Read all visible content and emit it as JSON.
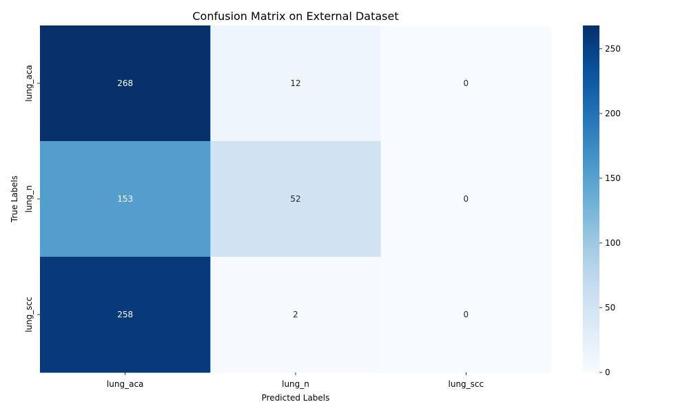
{
  "chart_data": {
    "type": "heatmap",
    "title": "Confusion Matrix on External Dataset",
    "xlabel": "Predicted Labels",
    "ylabel": "True Labels",
    "x_categories": [
      "lung_aca",
      "lung_n",
      "lung_scc"
    ],
    "y_categories": [
      "lung_aca",
      "lung_n",
      "lung_scc"
    ],
    "values": [
      [
        268,
        12,
        0
      ],
      [
        153,
        52,
        0
      ],
      [
        258,
        2,
        0
      ]
    ],
    "colorbar": {
      "min": 0,
      "max": 268,
      "ticks": [
        0,
        50,
        100,
        150,
        200,
        250
      ],
      "colormap": "Blues"
    }
  }
}
